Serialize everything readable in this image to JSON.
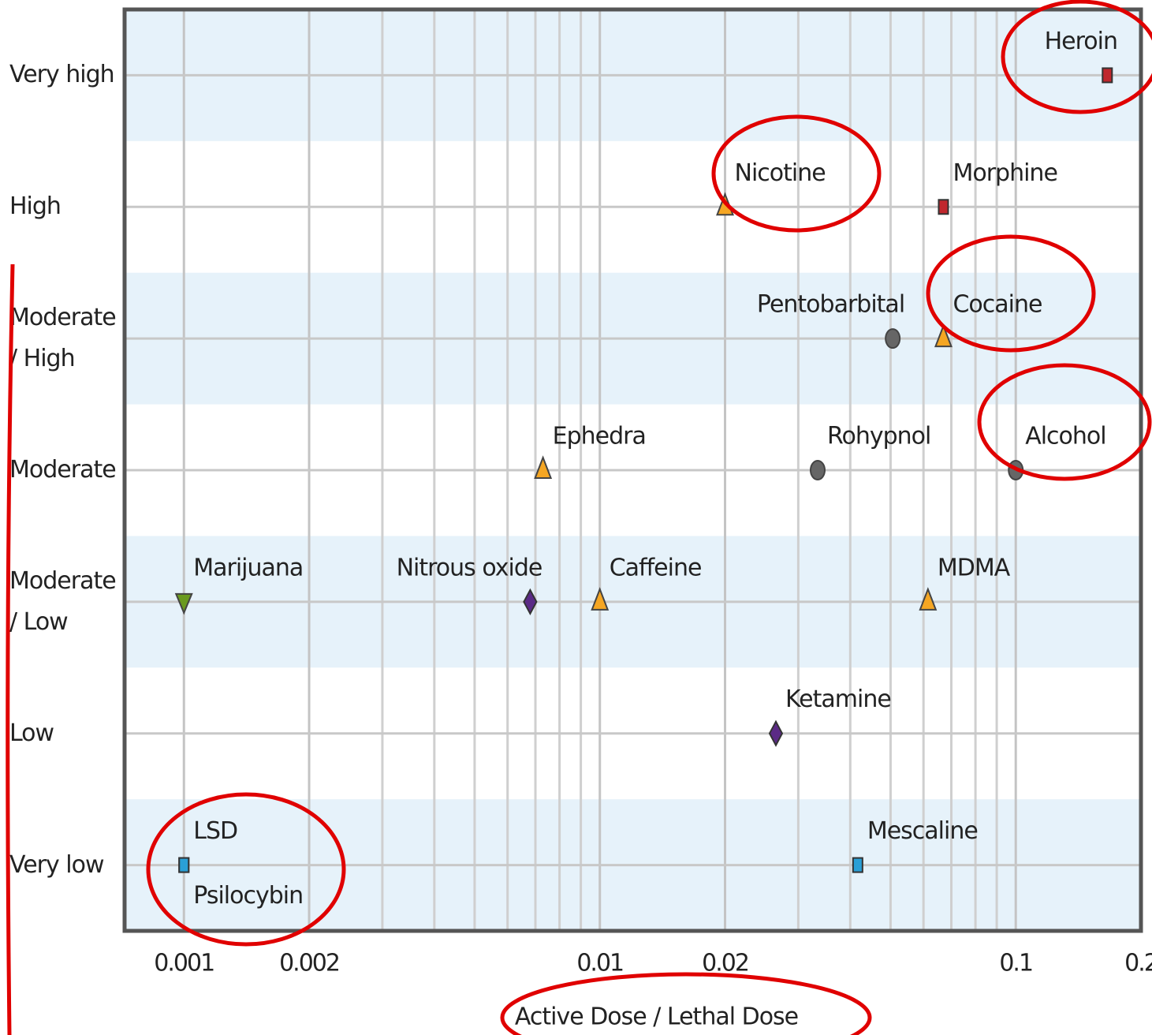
{
  "chart_data": {
    "type": "scatter",
    "x_label": "Active Dose / Lethal Dose",
    "x_log": true,
    "xlim": [
      0.00072,
      0.2
    ],
    "xticks": [
      0.001,
      0.002,
      0.01,
      0.02,
      0.1,
      0.2
    ],
    "x_minor_gridlines": [
      0.003,
      0.004,
      0.005,
      0.006,
      0.007,
      0.008,
      0.009,
      0.03,
      0.04,
      0.05,
      0.06,
      0.07,
      0.08,
      0.09
    ],
    "categories": [
      "Very high",
      "High",
      "Moderate\n/ High",
      "Moderate",
      "Moderate\n/ Low",
      "Low",
      "Very low"
    ],
    "grid": true,
    "band_color": "#e6f2fa",
    "points": [
      {
        "name": "Heroin",
        "x": 0.166,
        "y": "Very high",
        "marker": "square",
        "color": "#c0272d"
      },
      {
        "name": "Nicotine",
        "x": 0.02,
        "y": "High",
        "marker": "triangle-up",
        "color": "#f5a623"
      },
      {
        "name": "Morphine",
        "x": 0.067,
        "y": "High",
        "marker": "square",
        "color": "#c0272d"
      },
      {
        "name": "Pentobarbital",
        "x": 0.0506,
        "y": "Moderate\n/ High",
        "marker": "circle",
        "color": "#666666"
      },
      {
        "name": "Cocaine",
        "x": 0.067,
        "y": "Moderate\n/ High",
        "marker": "triangle-up",
        "color": "#f5a623"
      },
      {
        "name": "Ephedra",
        "x": 0.0073,
        "y": "Moderate",
        "marker": "triangle-up",
        "color": "#f5a623"
      },
      {
        "name": "Rohypnol",
        "x": 0.0334,
        "y": "Moderate",
        "marker": "circle",
        "color": "#666666"
      },
      {
        "name": "Alcohol",
        "x": 0.1,
        "y": "Moderate",
        "marker": "circle",
        "color": "#666666"
      },
      {
        "name": "Marijuana",
        "x": 0.001,
        "y": "Moderate\n/ Low",
        "marker": "triangle-down",
        "color": "#6a9a1f"
      },
      {
        "name": "Nitrous oxide",
        "x": 0.0068,
        "y": "Moderate\n/ Low",
        "marker": "diamond",
        "color": "#5b2a86"
      },
      {
        "name": "Caffeine",
        "x": 0.01,
        "y": "Moderate\n/ Low",
        "marker": "triangle-up",
        "color": "#f5a623"
      },
      {
        "name": "MDMA",
        "x": 0.0615,
        "y": "Moderate\n/ Low",
        "marker": "triangle-up",
        "color": "#f5a623"
      },
      {
        "name": "Ketamine",
        "x": 0.0265,
        "y": "Low",
        "marker": "diamond",
        "color": "#5b2a86"
      },
      {
        "name": "LSD",
        "x": 0.001,
        "y": "Very low",
        "marker": "square",
        "color": "#2a9fd6"
      },
      {
        "name": "Psilocybin",
        "x": 0.001,
        "y": "Very low",
        "marker": "square",
        "color": "#2a9fd6"
      },
      {
        "name": "Mescaline",
        "x": 0.0417,
        "y": "Very low",
        "marker": "square",
        "color": "#2a9fd6"
      }
    ]
  }
}
